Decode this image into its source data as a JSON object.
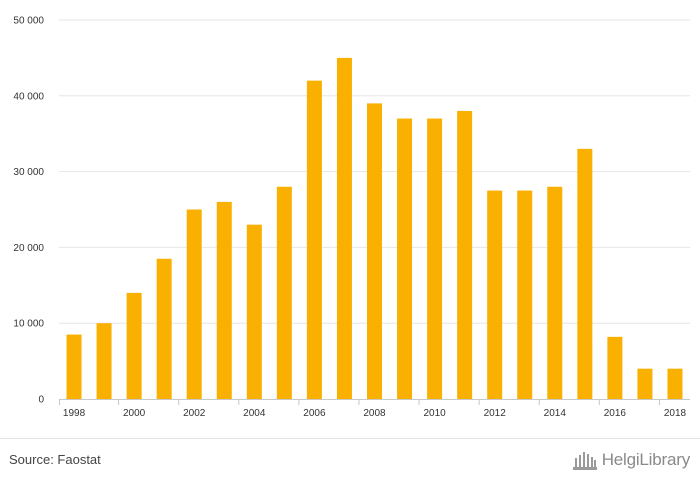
{
  "chart_data": {
    "type": "bar",
    "title": "",
    "xlabel": "",
    "ylabel": "",
    "categories": [
      "1998",
      "1999",
      "2000",
      "2001",
      "2002",
      "2003",
      "2004",
      "2005",
      "2006",
      "2007",
      "2008",
      "2009",
      "2010",
      "2011",
      "2012",
      "2013",
      "2014",
      "2015",
      "2016",
      "2017",
      "2018"
    ],
    "x_tick_labels": [
      "1998",
      "2000",
      "2002",
      "2004",
      "2006",
      "2008",
      "2010",
      "2012",
      "2014",
      "2016",
      "2018"
    ],
    "values": [
      8500,
      10000,
      14000,
      18500,
      25000,
      26000,
      23000,
      28000,
      42000,
      45000,
      39000,
      37000,
      37000,
      38000,
      27500,
      27500,
      28000,
      33000,
      8200,
      4000,
      4000
    ],
    "ylim": [
      0,
      50000
    ],
    "y_ticks": [
      0,
      10000,
      20000,
      30000,
      40000,
      50000
    ],
    "y_tick_labels": [
      "0",
      "10 000",
      "20 000",
      "30 000",
      "40 000",
      "50 000"
    ],
    "bar_color": "#f9b000",
    "grid": true,
    "legend": "none"
  },
  "footer": {
    "source": "Source: Faostat",
    "logo_text": "HelgiLibrary"
  }
}
